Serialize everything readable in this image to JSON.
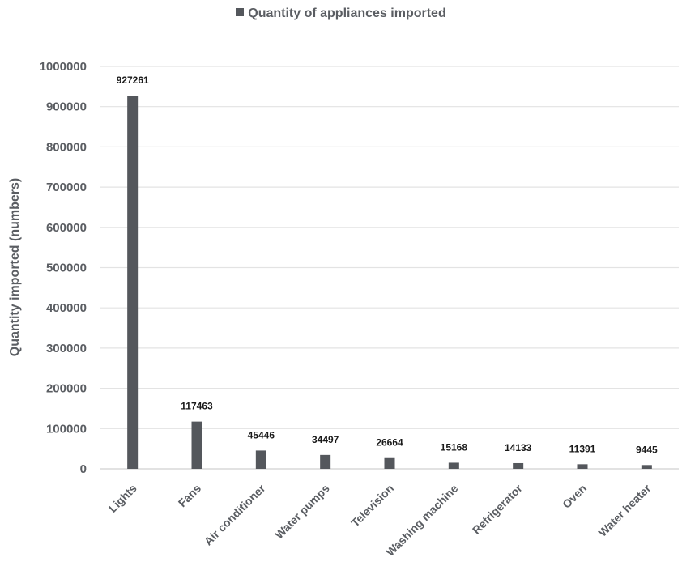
{
  "chart_data": {
    "type": "bar",
    "title": "",
    "xlabel": "",
    "ylabel": "Quantity imported (numbers)",
    "legend_position": "top-center",
    "grid": true,
    "ylim": [
      0,
      1000000
    ],
    "yticks": [
      "0",
      "100000",
      "200000",
      "300000",
      "400000",
      "500000",
      "600000",
      "700000",
      "800000",
      "900000",
      "1000000"
    ],
    "categories": [
      "Lights",
      "Fans",
      "Air conditioner",
      "Water pumps",
      "Television",
      "Washing machine",
      "Refrigerator",
      "Oven",
      "Water heater"
    ],
    "series": [
      {
        "name": "Quantity of appliances  imported",
        "color": "#54575c",
        "values": [
          927261,
          117463,
          45446,
          34497,
          26664,
          15168,
          14133,
          11391,
          9445
        ],
        "data_labels": [
          "927261",
          "117463",
          "45446",
          "34497",
          "26664",
          "15168",
          "14133",
          "11391",
          "9445"
        ]
      }
    ]
  }
}
